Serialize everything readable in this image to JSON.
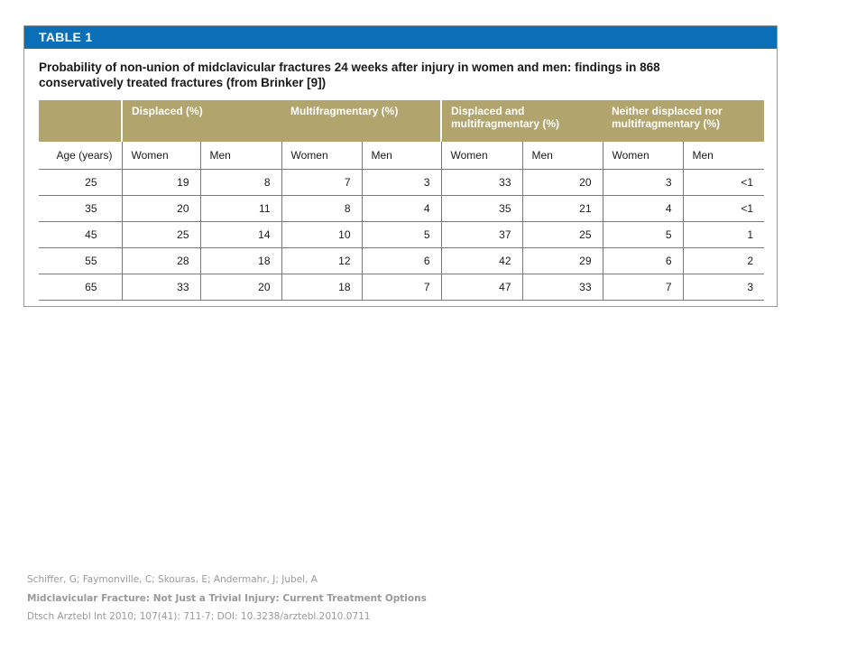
{
  "table": {
    "label": "TABLE 1",
    "caption_line1": "Probability of non-union of midclavicular fractures 24 weeks after injury in women and men: findings in 868",
    "caption_line2": "conservatively treated fractures (from Brinker [9])",
    "groups": [
      {
        "line1": "Displaced (%)",
        "line2": ""
      },
      {
        "line1": "Multifragmentary (%)",
        "line2": ""
      },
      {
        "line1": "Displaced and",
        "line2": "multifragmentary (%)"
      },
      {
        "line1": "Neither displaced nor",
        "line2": "multifragmentary (%)"
      }
    ],
    "age_header": "Age (years)",
    "women_label": "Women",
    "men_label": "Men",
    "rows": [
      {
        "age": "25",
        "values": [
          "19",
          "8",
          "7",
          "3",
          "33",
          "20",
          "3",
          "<1"
        ]
      },
      {
        "age": "35",
        "values": [
          "20",
          "11",
          "8",
          "4",
          "35",
          "21",
          "4",
          "<1"
        ]
      },
      {
        "age": "45",
        "values": [
          "25",
          "14",
          "10",
          "5",
          "37",
          "25",
          "5",
          "1"
        ]
      },
      {
        "age": "55",
        "values": [
          "28",
          "18",
          "12",
          "6",
          "42",
          "29",
          "6",
          "2"
        ]
      },
      {
        "age": "65",
        "values": [
          "33",
          "20",
          "18",
          "7",
          "47",
          "33",
          "7",
          "3"
        ]
      }
    ]
  },
  "citation": {
    "authors": "Schiffer, G; Faymonville, C; Skouras, E; Andermahr, J; Jubel, A",
    "title": "Midclavicular  Fracture: Not Just a Trivial Injury: Current Treatment Options",
    "journal": "Dtsch Arztebl Int 2010; 107(41): 711-7; DOI: 10.3238/arztebl.2010.0711"
  },
  "colors": {
    "banner": "#0a6fb6",
    "header_fill": "#b1a46c"
  }
}
